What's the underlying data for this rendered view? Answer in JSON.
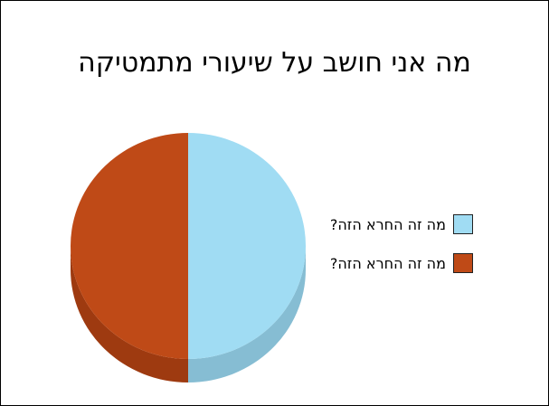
{
  "chart_data": {
    "type": "pie",
    "title": "מה אני חושב על שיעורי מתמטיקה",
    "slices": [
      {
        "label": "מה זה החרא הזה?",
        "value": 50,
        "color": "#a0dcf3",
        "shade": "#86bdd3"
      },
      {
        "label": "מה זה החרא הזה?",
        "value": 50,
        "color": "#bf4a17",
        "shade": "#9e3a10"
      }
    ],
    "legend_position": "right",
    "three_d": true
  }
}
